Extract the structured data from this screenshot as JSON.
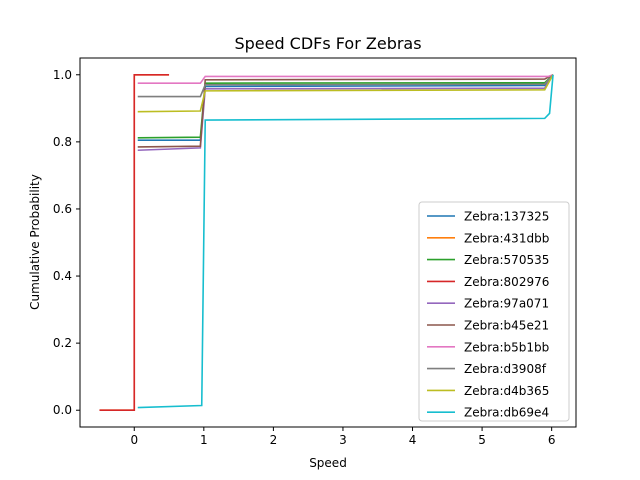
{
  "chart_data": {
    "type": "line",
    "title": "Speed CDFs For Zebras",
    "xlabel": "Speed",
    "ylabel": "Cumulative Probability",
    "xlim": [
      -0.78,
      6.35
    ],
    "ylim": [
      -0.05,
      1.05
    ],
    "xticks": [
      0,
      1,
      2,
      3,
      4,
      5,
      6
    ],
    "yticks": [
      0.0,
      0.2,
      0.4,
      0.6,
      0.8,
      1.0
    ],
    "xtick_labels": [
      "0",
      "1",
      "2",
      "3",
      "4",
      "5",
      "6"
    ],
    "ytick_labels": [
      "0.0",
      "0.2",
      "0.4",
      "0.6",
      "0.8",
      "1.0"
    ],
    "grid": false,
    "legend_position": "lower-right",
    "series": [
      {
        "name": "Zebra:137325",
        "color": "#1f77b4",
        "x": [
          0.05,
          0.95,
          1.02,
          5.9,
          6.02
        ],
        "y": [
          0.805,
          0.805,
          0.965,
          0.968,
          1.0
        ]
      },
      {
        "name": "Zebra:431dbb",
        "color": "#ff7f0e",
        "x": [
          -0.5,
          0.0,
          0.0,
          0.5
        ],
        "y": [
          0.0,
          0.0,
          1.0,
          1.0
        ]
      },
      {
        "name": "Zebra:570535",
        "color": "#2ca02c",
        "x": [
          0.05,
          0.95,
          1.02,
          5.9,
          6.02
        ],
        "y": [
          0.812,
          0.814,
          0.975,
          0.976,
          1.0
        ]
      },
      {
        "name": "Zebra:802976",
        "color": "#d62728",
        "x": [
          -0.5,
          0.0,
          0.0,
          0.5
        ],
        "y": [
          0.0,
          0.0,
          1.0,
          1.0
        ]
      },
      {
        "name": "Zebra:97a071",
        "color": "#9467bd",
        "x": [
          0.05,
          0.95,
          1.02,
          5.9,
          6.02
        ],
        "y": [
          0.775,
          0.782,
          0.958,
          0.96,
          1.0
        ]
      },
      {
        "name": "Zebra:b45e21",
        "color": "#8c564b",
        "x": [
          0.05,
          0.95,
          1.02,
          5.9,
          6.02
        ],
        "y": [
          0.785,
          0.787,
          0.985,
          0.987,
          1.0
        ]
      },
      {
        "name": "Zebra:b5b1bb",
        "color": "#e377c2",
        "x": [
          0.05,
          0.95,
          1.02,
          5.95,
          6.02
        ],
        "y": [
          0.975,
          0.975,
          0.995,
          0.995,
          1.0
        ]
      },
      {
        "name": "Zebra:d3908f",
        "color": "#7f7f7f",
        "x": [
          0.05,
          0.95,
          1.02,
          5.9,
          6.02
        ],
        "y": [
          0.935,
          0.935,
          0.97,
          0.972,
          1.0
        ]
      },
      {
        "name": "Zebra:d4b365",
        "color": "#bcbd22",
        "x": [
          0.05,
          0.95,
          1.02,
          5.9,
          6.02
        ],
        "y": [
          0.89,
          0.892,
          0.952,
          0.955,
          1.0
        ]
      },
      {
        "name": "Zebra:db69e4",
        "color": "#17becf",
        "x": [
          0.05,
          0.97,
          1.02,
          5.9,
          5.97,
          6.02
        ],
        "y": [
          0.008,
          0.014,
          0.865,
          0.87,
          0.885,
          1.0
        ]
      }
    ]
  }
}
